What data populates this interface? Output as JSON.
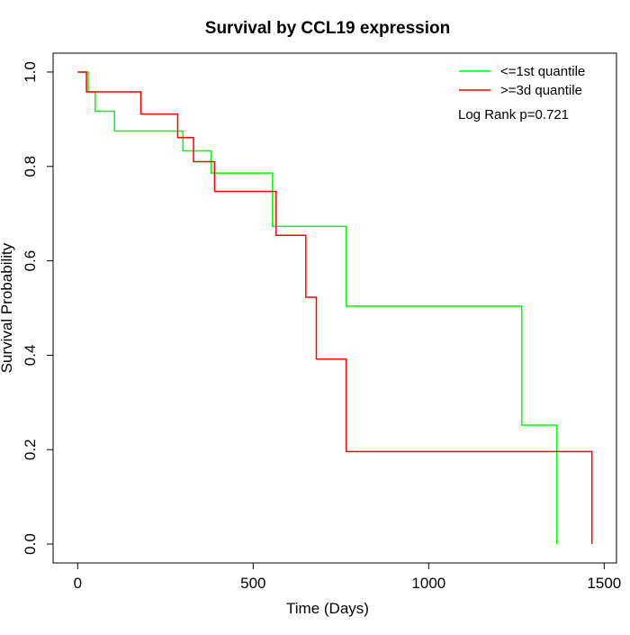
{
  "chart_data": {
    "type": "line",
    "step": true,
    "title": "Survival by CCL19 expression",
    "xlabel": "Time (Days)",
    "ylabel": "Survival Probability",
    "xlim": [
      -70,
      1535
    ],
    "ylim": [
      -0.04,
      1.04
    ],
    "xticks": [
      0,
      500,
      1000,
      1500
    ],
    "xtick_labels": [
      "0",
      "500",
      "1000",
      "1500"
    ],
    "yticks": [
      0,
      0.2,
      0.4,
      0.6,
      0.8,
      1.0
    ],
    "ytick_labels": [
      "0.0",
      "0.2",
      "0.4",
      "0.6",
      "0.8",
      "1.0"
    ],
    "grid": false,
    "legend_position": "top-right",
    "annotation": "Log Rank p=0.721",
    "series": [
      {
        "name": "<=1st quantile",
        "color": "#00ff00",
        "x": [
          0,
          30,
          50,
          105,
          300,
          310,
          380,
          385,
          555,
          560,
          765,
          1265,
          1365
        ],
        "y": [
          1.0,
          0.958,
          0.917,
          0.875,
          0.833,
          0.833,
          0.786,
          0.786,
          0.673,
          0.673,
          0.504,
          0.252,
          0.0
        ]
      },
      {
        "name": ">=3d quantile",
        "color": "#ff0000",
        "x": [
          0,
          25,
          180,
          285,
          330,
          390,
          565,
          650,
          680,
          765,
          1465
        ],
        "y": [
          1.0,
          0.958,
          0.911,
          0.861,
          0.81,
          0.747,
          0.654,
          0.523,
          0.392,
          0.196,
          0.0
        ]
      }
    ]
  }
}
